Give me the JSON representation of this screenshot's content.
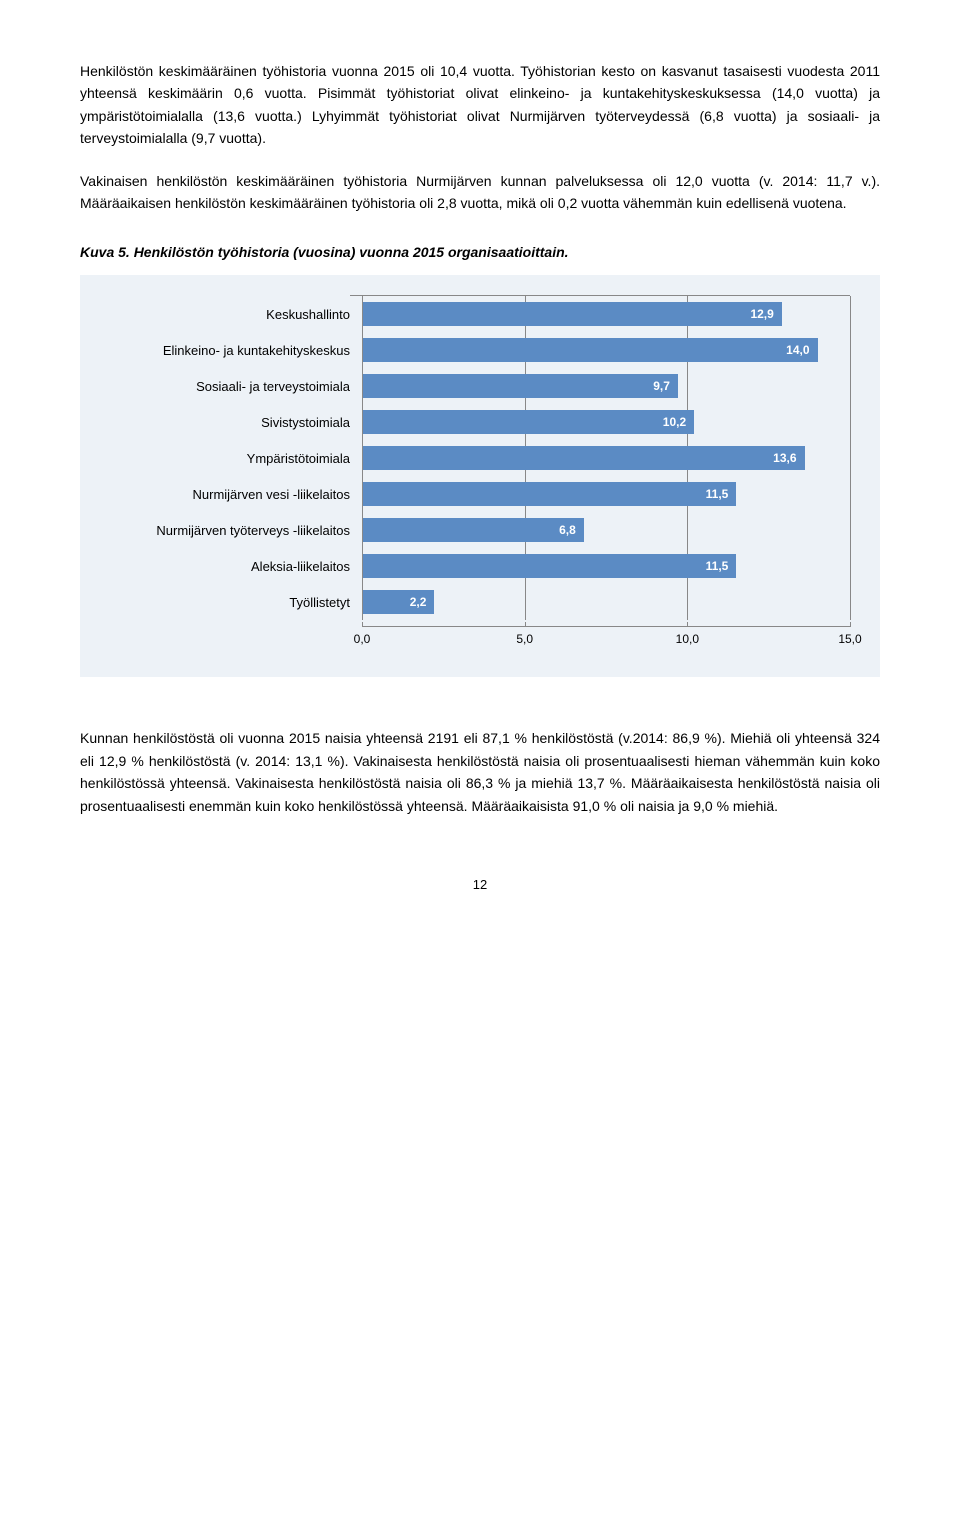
{
  "paragraphs": {
    "p1": "Henkilöstön keskimääräinen työhistoria vuonna 2015 oli 10,4 vuotta. Työhistorian kesto on kasvanut tasaisesti vuodesta 2011 yhteensä keskimäärin 0,6 vuotta. Pisimmät työhistoriat olivat elinkeino- ja kuntakehityskeskuksessa (14,0 vuotta) ja ympäristötoimialalla (13,6 vuotta.) Lyhyimmät työhistoriat olivat Nurmijärven työterveydessä (6,8 vuotta) ja sosiaali- ja terveystoimialalla (9,7 vuotta).",
    "p2": "Vakinaisen henkilöstön keskimääräinen työhistoria Nurmijärven kunnan palveluksessa oli 12,0 vuotta (v. 2014: 11,7 v.). Määräaikaisen henkilöstön keskimääräinen työhistoria oli 2,8 vuotta, mikä oli 0,2 vuotta vähemmän kuin edellisenä vuotena.",
    "p3": "Kunnan henkilöstöstä oli vuonna 2015 naisia yhteensä 2191 eli 87,1 % henkilöstöstä (v.2014: 86,9 %). Miehiä oli yhteensä 324 eli 12,9 % henkilöstöstä (v. 2014: 13,1 %). Vakinaisesta henkilöstöstä naisia oli prosentuaalisesti hieman vähemmän kuin koko henkilöstössä yhteensä. Vakinaisesta henkilöstöstä naisia oli 86,3 % ja miehiä 13,7 %. Määräaikaisesta henkilöstöstä naisia oli prosentuaalisesti enemmän kuin koko henkilöstössä yhteensä. Määräaikaisista 91,0 % oli naisia ja 9,0 % miehiä."
  },
  "chart": {
    "title": "Kuva 5. Henkilöstön työhistoria (vuosina) vuonna 2015 organisaatioittain.",
    "type": "bar",
    "bar_color": "#5b8bc4",
    "background_color": "#edf2f7",
    "grid_color": "#888888",
    "value_text_color": "#ffffff",
    "label_fontsize": 13,
    "value_fontsize": 12,
    "xmax": 15.0,
    "xticks": [
      "0,0",
      "5,0",
      "10,0",
      "15,0"
    ],
    "xtick_values": [
      0,
      5,
      10,
      15
    ],
    "categories": [
      {
        "label": "Keskushallinto",
        "value": 12.9,
        "display": "12,9"
      },
      {
        "label": "Elinkeino- ja kuntakehityskeskus",
        "value": 14.0,
        "display": "14,0"
      },
      {
        "label": "Sosiaali- ja terveystoimiala",
        "value": 9.7,
        "display": "9,7"
      },
      {
        "label": "Sivistystoimiala",
        "value": 10.2,
        "display": "10,2"
      },
      {
        "label": "Ympäristötoimiala",
        "value": 13.6,
        "display": "13,6"
      },
      {
        "label": "Nurmijärven vesi -liikelaitos",
        "value": 11.5,
        "display": "11,5"
      },
      {
        "label": "Nurmijärven työterveys -liikelaitos",
        "value": 6.8,
        "display": "6,8"
      },
      {
        "label": "Aleksia-liikelaitos",
        "value": 11.5,
        "display": "11,5"
      },
      {
        "label": "Työllistetyt",
        "value": 2.2,
        "display": "2,2"
      }
    ]
  },
  "page_number": "12"
}
